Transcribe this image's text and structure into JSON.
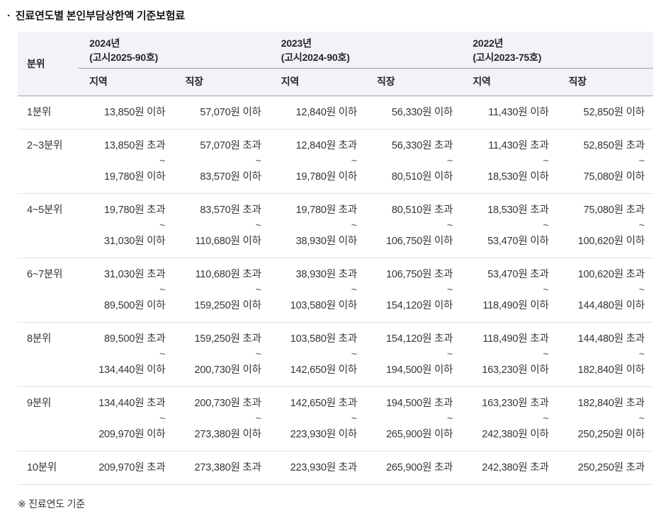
{
  "title_bullet": "·",
  "title": "진료연도별 본인부담상한액 기준보험료",
  "footnote": "※ 진료연도 기준",
  "table": {
    "col_header": "분위",
    "region_label": "지역",
    "workplace_label": "직장",
    "years": [
      {
        "year": "2024년",
        "notice": "(고시2025-90호)"
      },
      {
        "year": "2023년",
        "notice": "(고시2024-90호)"
      },
      {
        "year": "2022년",
        "notice": "(고시2023-75호)"
      }
    ],
    "rows": [
      {
        "label": "1분위",
        "cells": [
          [
            "13,850원 이하"
          ],
          [
            "57,070원 이하"
          ],
          [
            "12,840원 이하"
          ],
          [
            "56,330원 이하"
          ],
          [
            "11,430원 이하"
          ],
          [
            "52,850원 이하"
          ]
        ]
      },
      {
        "label": "2~3분위",
        "cells": [
          [
            "13,850원 초과",
            "~",
            "19,780원 이하"
          ],
          [
            "57,070원 초과",
            "~",
            "83,570원 이하"
          ],
          [
            "12,840원 초과",
            "~",
            "19,780원 이하"
          ],
          [
            "56,330원 초과",
            "~",
            "80,510원 이하"
          ],
          [
            "11,430원 초과",
            "~",
            "18,530원 이하"
          ],
          [
            "52,850원 초과",
            "~",
            "75,080원 이하"
          ]
        ]
      },
      {
        "label": "4~5분위",
        "cells": [
          [
            "19,780원 초과",
            "~",
            "31,030원 이하"
          ],
          [
            "83,570원 초과",
            "~",
            "110,680원 이하"
          ],
          [
            "19,780원 초과",
            "~",
            "38,930원 이하"
          ],
          [
            "80,510원 초과",
            "~",
            "106,750원 이하"
          ],
          [
            "18,530원 초과",
            "~",
            "53,470원 이하"
          ],
          [
            "75,080원 초과",
            "~",
            "100,620원 이하"
          ]
        ]
      },
      {
        "label": "6~7분위",
        "cells": [
          [
            "31,030원 초과",
            "~",
            "89,500원 이하"
          ],
          [
            "110,680원 초과",
            "~",
            "159,250원 이하"
          ],
          [
            "38,930원 초과",
            "~",
            "103,580원 이하"
          ],
          [
            "106,750원 초과",
            "~",
            "154,120원 이하"
          ],
          [
            "53,470원 초과",
            "~",
            "118,490원 이하"
          ],
          [
            "100,620원 초과",
            "~",
            "144,480원 이하"
          ]
        ]
      },
      {
        "label": "8분위",
        "cells": [
          [
            "89,500원 초과",
            "~",
            "134,440원 이하"
          ],
          [
            "159,250원 초과",
            "~",
            "200,730원 이하"
          ],
          [
            "103,580원 초과",
            "~",
            "142,650원 이하"
          ],
          [
            "154,120원 초과",
            "~",
            "194,500원 이하"
          ],
          [
            "118,490원 초과",
            "~",
            "163,230원 이하"
          ],
          [
            "144,480원 초과",
            "~",
            "182,840원 이하"
          ]
        ]
      },
      {
        "label": "9분위",
        "cells": [
          [
            "134,440원 초과",
            "~",
            "209,970원 이하"
          ],
          [
            "200,730원 초과",
            "~",
            "273,380원 이하"
          ],
          [
            "142,650원 초과",
            "~",
            "223,930원 이하"
          ],
          [
            "194,500원 초과",
            "~",
            "265,900원 이하"
          ],
          [
            "163,230원 초과",
            "~",
            "242,380원 이하"
          ],
          [
            "182,840원 초과",
            "~",
            "250,250원 이하"
          ]
        ]
      },
      {
        "label": "10분위",
        "cells": [
          [
            "209,970원 초과"
          ],
          [
            "273,380원 초과"
          ],
          [
            "223,930원 초과"
          ],
          [
            "265,900원 초과"
          ],
          [
            "242,380원 초과"
          ],
          [
            "250,250원 초과"
          ]
        ]
      }
    ]
  }
}
